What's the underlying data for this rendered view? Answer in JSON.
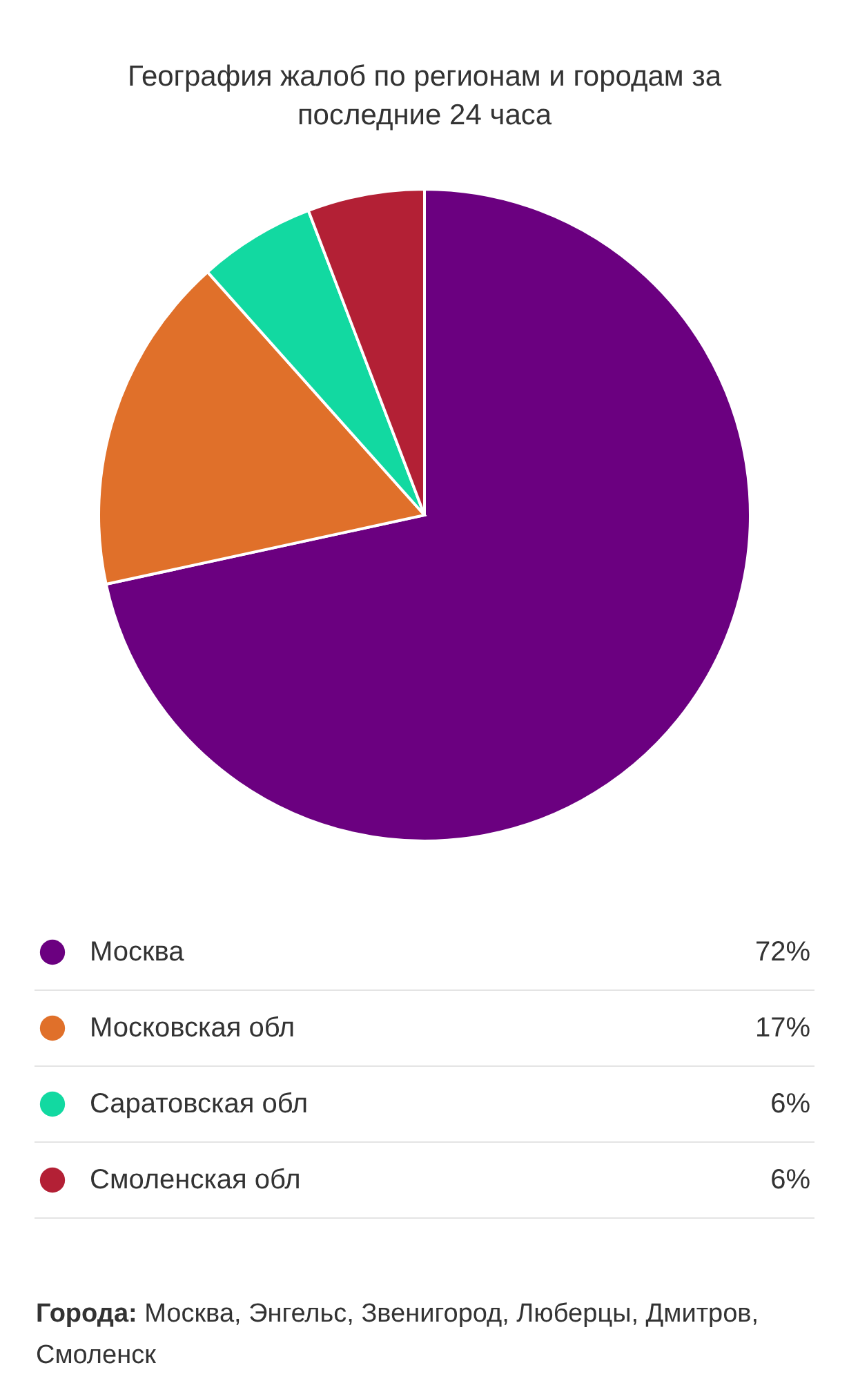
{
  "chart_data": {
    "type": "pie",
    "title": "География жалоб по регионам и городам за последние 24 часа",
    "categories": [
      "Москва",
      "Московская обл",
      "Саратовская обл",
      "Смоленская обл"
    ],
    "values": [
      71.6,
      16.8,
      5.8,
      5.8
    ],
    "value_labels": [
      "72%",
      "17%",
      "6%",
      "6%"
    ],
    "colors": [
      "#6b0080",
      "#e0702a",
      "#12d9a1",
      "#b32035"
    ],
    "legend": "bottom",
    "annotations": [
      "Города: Москва, Энгельс, Звенигород, Люберцы, Дмитров, Смоленск"
    ]
  }
}
